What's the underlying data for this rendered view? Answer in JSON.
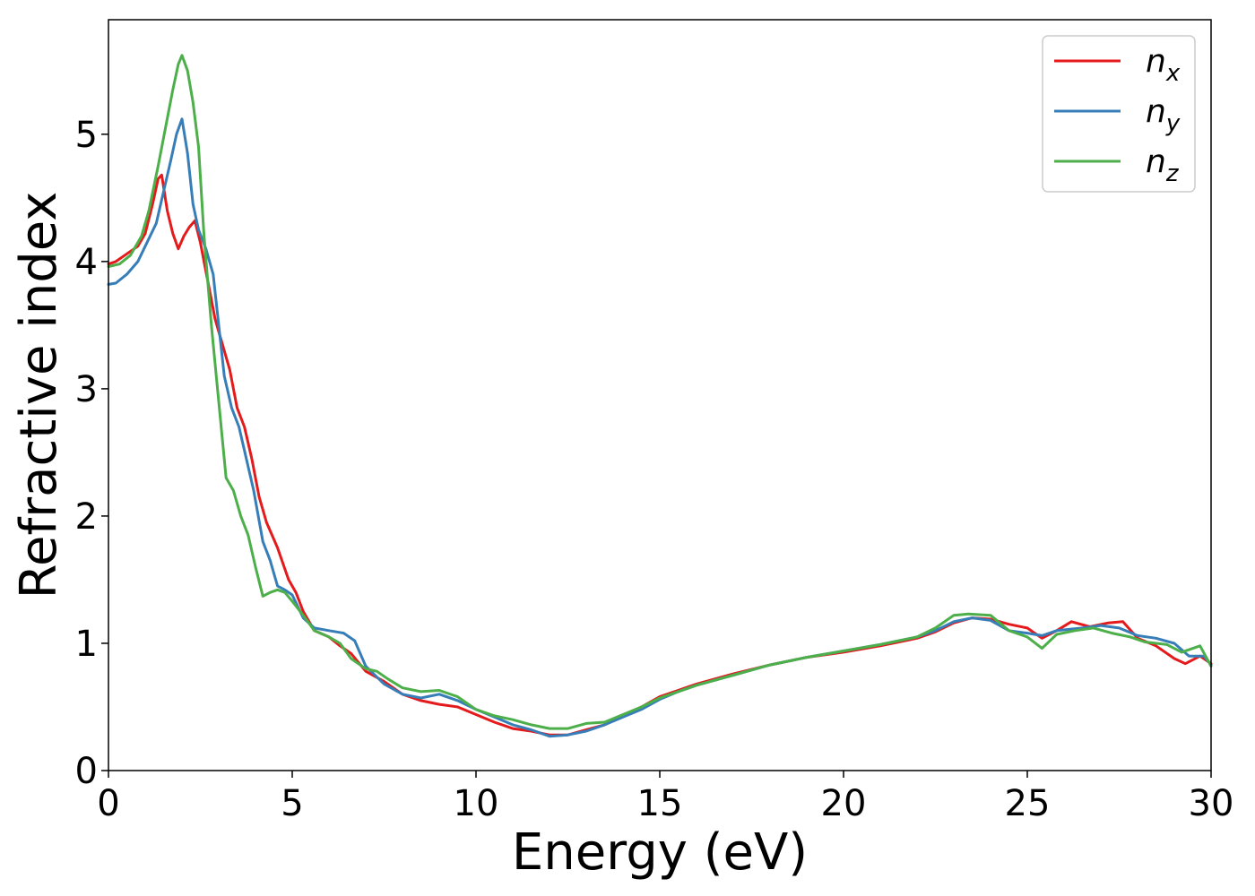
{
  "chart_data": {
    "type": "line",
    "title": "",
    "xlabel": "Energy (eV)",
    "ylabel": "Refractive index",
    "xlim": [
      0,
      30
    ],
    "ylim": [
      0,
      5.9
    ],
    "xticks": [
      0,
      5,
      10,
      15,
      20,
      25,
      30
    ],
    "yticks": [
      0,
      1,
      2,
      3,
      4,
      5
    ],
    "grid": false,
    "legend_position": "top-right",
    "series": [
      {
        "name": "n",
        "subscript": "x",
        "color": "#e41a1c",
        "points": [
          [
            0,
            3.98
          ],
          [
            0.2,
            4.0
          ],
          [
            0.5,
            4.06
          ],
          [
            0.8,
            4.12
          ],
          [
            1.0,
            4.22
          ],
          [
            1.2,
            4.45
          ],
          [
            1.35,
            4.65
          ],
          [
            1.45,
            4.68
          ],
          [
            1.6,
            4.4
          ],
          [
            1.75,
            4.22
          ],
          [
            1.9,
            4.1
          ],
          [
            2.05,
            4.2
          ],
          [
            2.2,
            4.27
          ],
          [
            2.35,
            4.32
          ],
          [
            2.5,
            4.15
          ],
          [
            2.7,
            3.85
          ],
          [
            2.9,
            3.55
          ],
          [
            3.1,
            3.35
          ],
          [
            3.3,
            3.15
          ],
          [
            3.5,
            2.85
          ],
          [
            3.7,
            2.7
          ],
          [
            3.9,
            2.45
          ],
          [
            4.1,
            2.15
          ],
          [
            4.3,
            1.95
          ],
          [
            4.6,
            1.75
          ],
          [
            4.9,
            1.5
          ],
          [
            5.1,
            1.4
          ],
          [
            5.3,
            1.25
          ],
          [
            5.6,
            1.1
          ],
          [
            6.0,
            1.05
          ],
          [
            6.3,
            0.98
          ],
          [
            6.6,
            0.92
          ],
          [
            7.0,
            0.78
          ],
          [
            7.5,
            0.7
          ],
          [
            8.0,
            0.6
          ],
          [
            8.5,
            0.55
          ],
          [
            9.0,
            0.52
          ],
          [
            9.5,
            0.5
          ],
          [
            10.0,
            0.44
          ],
          [
            10.5,
            0.38
          ],
          [
            11.0,
            0.33
          ],
          [
            11.5,
            0.31
          ],
          [
            12.0,
            0.28
          ],
          [
            12.5,
            0.28
          ],
          [
            13.0,
            0.32
          ],
          [
            13.5,
            0.36
          ],
          [
            14.0,
            0.43
          ],
          [
            14.5,
            0.5
          ],
          [
            15.0,
            0.58
          ],
          [
            15.5,
            0.63
          ],
          [
            16.0,
            0.68
          ],
          [
            17.0,
            0.76
          ],
          [
            18.0,
            0.83
          ],
          [
            19.0,
            0.89
          ],
          [
            20.0,
            0.93
          ],
          [
            21.0,
            0.98
          ],
          [
            22.0,
            1.04
          ],
          [
            22.5,
            1.09
          ],
          [
            23.0,
            1.16
          ],
          [
            23.5,
            1.2
          ],
          [
            24.0,
            1.19
          ],
          [
            24.5,
            1.15
          ],
          [
            25.0,
            1.12
          ],
          [
            25.4,
            1.04
          ],
          [
            25.8,
            1.1
          ],
          [
            26.2,
            1.17
          ],
          [
            26.7,
            1.13
          ],
          [
            27.2,
            1.16
          ],
          [
            27.6,
            1.17
          ],
          [
            28.0,
            1.04
          ],
          [
            28.5,
            0.98
          ],
          [
            29.0,
            0.88
          ],
          [
            29.3,
            0.84
          ],
          [
            29.7,
            0.9
          ],
          [
            30.0,
            0.84
          ]
        ]
      },
      {
        "name": "n",
        "subscript": "y",
        "color": "#377eb8",
        "points": [
          [
            0,
            3.82
          ],
          [
            0.2,
            3.83
          ],
          [
            0.5,
            3.9
          ],
          [
            0.8,
            4.0
          ],
          [
            1.0,
            4.12
          ],
          [
            1.3,
            4.3
          ],
          [
            1.5,
            4.55
          ],
          [
            1.7,
            4.8
          ],
          [
            1.85,
            5.0
          ],
          [
            2.0,
            5.12
          ],
          [
            2.15,
            4.85
          ],
          [
            2.3,
            4.45
          ],
          [
            2.45,
            4.25
          ],
          [
            2.65,
            4.1
          ],
          [
            2.85,
            3.9
          ],
          [
            3.0,
            3.5
          ],
          [
            3.15,
            3.1
          ],
          [
            3.35,
            2.85
          ],
          [
            3.55,
            2.7
          ],
          [
            3.75,
            2.45
          ],
          [
            3.95,
            2.2
          ],
          [
            4.2,
            1.8
          ],
          [
            4.4,
            1.65
          ],
          [
            4.6,
            1.45
          ],
          [
            4.8,
            1.42
          ],
          [
            5.0,
            1.38
          ],
          [
            5.3,
            1.2
          ],
          [
            5.6,
            1.12
          ],
          [
            6.0,
            1.1
          ],
          [
            6.4,
            1.08
          ],
          [
            6.7,
            1.02
          ],
          [
            7.0,
            0.82
          ],
          [
            7.5,
            0.68
          ],
          [
            8.0,
            0.6
          ],
          [
            8.5,
            0.57
          ],
          [
            9.0,
            0.6
          ],
          [
            9.5,
            0.55
          ],
          [
            10.0,
            0.48
          ],
          [
            10.5,
            0.42
          ],
          [
            11.0,
            0.36
          ],
          [
            11.5,
            0.32
          ],
          [
            12.0,
            0.27
          ],
          [
            12.5,
            0.28
          ],
          [
            13.0,
            0.31
          ],
          [
            13.5,
            0.36
          ],
          [
            14.0,
            0.42
          ],
          [
            14.5,
            0.48
          ],
          [
            15.0,
            0.56
          ],
          [
            15.5,
            0.62
          ],
          [
            16.0,
            0.67
          ],
          [
            17.0,
            0.75
          ],
          [
            18.0,
            0.83
          ],
          [
            19.0,
            0.89
          ],
          [
            20.0,
            0.94
          ],
          [
            21.0,
            0.99
          ],
          [
            22.0,
            1.05
          ],
          [
            22.5,
            1.1
          ],
          [
            23.0,
            1.17
          ],
          [
            23.5,
            1.2
          ],
          [
            24.0,
            1.18
          ],
          [
            24.5,
            1.1
          ],
          [
            25.0,
            1.08
          ],
          [
            25.4,
            1.06
          ],
          [
            25.8,
            1.1
          ],
          [
            26.5,
            1.12
          ],
          [
            27.0,
            1.14
          ],
          [
            27.5,
            1.12
          ],
          [
            28.0,
            1.06
          ],
          [
            28.5,
            1.04
          ],
          [
            29.0,
            1.0
          ],
          [
            29.4,
            0.9
          ],
          [
            29.8,
            0.9
          ],
          [
            30.0,
            0.83
          ]
        ]
      },
      {
        "name": "n",
        "subscript": "z",
        "color": "#4daf4a",
        "points": [
          [
            0,
            3.96
          ],
          [
            0.3,
            3.98
          ],
          [
            0.6,
            4.05
          ],
          [
            0.9,
            4.2
          ],
          [
            1.1,
            4.4
          ],
          [
            1.35,
            4.75
          ],
          [
            1.55,
            5.05
          ],
          [
            1.75,
            5.35
          ],
          [
            1.9,
            5.55
          ],
          [
            2.0,
            5.62
          ],
          [
            2.15,
            5.5
          ],
          [
            2.3,
            5.25
          ],
          [
            2.45,
            4.9
          ],
          [
            2.6,
            4.2
          ],
          [
            2.8,
            3.5
          ],
          [
            3.0,
            2.9
          ],
          [
            3.2,
            2.3
          ],
          [
            3.4,
            2.2
          ],
          [
            3.6,
            2.0
          ],
          [
            3.8,
            1.85
          ],
          [
            4.0,
            1.6
          ],
          [
            4.2,
            1.37
          ],
          [
            4.4,
            1.4
          ],
          [
            4.6,
            1.42
          ],
          [
            4.8,
            1.4
          ],
          [
            5.0,
            1.33
          ],
          [
            5.3,
            1.22
          ],
          [
            5.6,
            1.1
          ],
          [
            6.0,
            1.05
          ],
          [
            6.3,
            1.0
          ],
          [
            6.6,
            0.88
          ],
          [
            7.0,
            0.8
          ],
          [
            7.3,
            0.78
          ],
          [
            7.6,
            0.72
          ],
          [
            8.0,
            0.65
          ],
          [
            8.5,
            0.62
          ],
          [
            9.0,
            0.63
          ],
          [
            9.5,
            0.58
          ],
          [
            10.0,
            0.48
          ],
          [
            10.5,
            0.43
          ],
          [
            11.0,
            0.4
          ],
          [
            11.5,
            0.36
          ],
          [
            12.0,
            0.33
          ],
          [
            12.5,
            0.33
          ],
          [
            13.0,
            0.37
          ],
          [
            13.5,
            0.38
          ],
          [
            14.0,
            0.44
          ],
          [
            14.5,
            0.5
          ],
          [
            15.0,
            0.57
          ],
          [
            15.5,
            0.62
          ],
          [
            16.0,
            0.67
          ],
          [
            17.0,
            0.75
          ],
          [
            18.0,
            0.83
          ],
          [
            19.0,
            0.89
          ],
          [
            20.0,
            0.94
          ],
          [
            21.0,
            0.99
          ],
          [
            22.0,
            1.05
          ],
          [
            22.5,
            1.12
          ],
          [
            23.0,
            1.22
          ],
          [
            23.4,
            1.23
          ],
          [
            24.0,
            1.22
          ],
          [
            24.5,
            1.1
          ],
          [
            25.0,
            1.05
          ],
          [
            25.4,
            0.96
          ],
          [
            25.8,
            1.07
          ],
          [
            26.3,
            1.1
          ],
          [
            26.8,
            1.12
          ],
          [
            27.3,
            1.08
          ],
          [
            27.8,
            1.05
          ],
          [
            28.2,
            1.01
          ],
          [
            28.8,
            0.99
          ],
          [
            29.2,
            0.93
          ],
          [
            29.7,
            0.98
          ],
          [
            30.0,
            0.82
          ]
        ]
      }
    ]
  }
}
